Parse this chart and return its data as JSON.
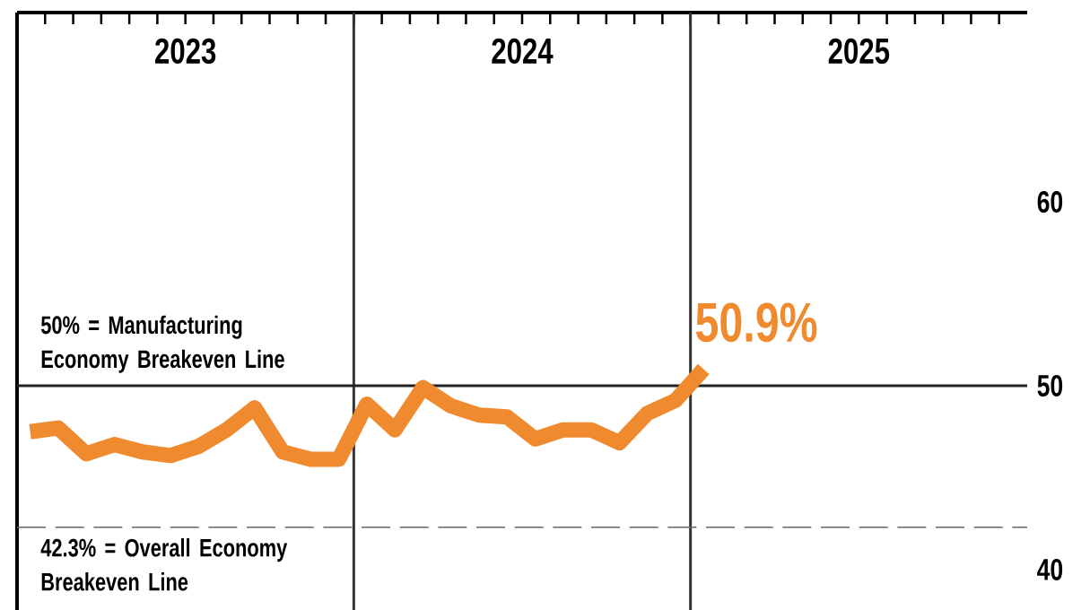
{
  "chart_data": {
    "type": "line",
    "color": "#ef8a2f",
    "marker": "none",
    "line_style": "solid",
    "x": [
      "2023-01-15",
      "2023-02-15",
      "2023-03-15",
      "2023-04-15",
      "2023-05-15",
      "2023-06-15",
      "2023-07-15",
      "2023-08-15",
      "2023-09-15",
      "2023-10-15",
      "2023-11-15",
      "2023-12-15",
      "2024-01-15",
      "2024-02-15",
      "2024-03-15",
      "2024-04-15",
      "2024-05-15",
      "2024-06-15",
      "2024-07-15",
      "2024-08-15",
      "2024-09-15",
      "2024-10-15",
      "2024-11-15",
      "2024-12-15",
      "2025-01-15"
    ],
    "values": [
      47.5,
      47.7,
      46.3,
      46.8,
      46.4,
      46.2,
      46.7,
      47.6,
      48.8,
      46.4,
      46.0,
      46.0,
      49.0,
      47.6,
      49.9,
      48.9,
      48.4,
      48.3,
      47.1,
      47.6,
      47.6,
      46.9,
      48.5,
      49.2,
      50.9
    ],
    "xlim": [
      "2023-01-01",
      "2026-01-01"
    ],
    "xticks": [
      {
        "value": "2023-01",
        "label": null
      },
      {
        "value": "2023-02",
        "label": null
      },
      {
        "value": "2023-03",
        "label": null
      },
      {
        "value": "2023-04",
        "label": null
      },
      {
        "value": "2023-05",
        "label": null
      },
      {
        "value": "2023-06",
        "label": null
      },
      {
        "value": "2023-07",
        "label": null
      },
      {
        "value": "2023-08",
        "label": null
      },
      {
        "value": "2023-09",
        "label": null
      },
      {
        "value": "2023-10",
        "label": null
      },
      {
        "value": "2023-11",
        "label": null
      },
      {
        "value": "2023-12",
        "label": null
      },
      {
        "value": "2024-01",
        "label": null
      },
      {
        "value": "2024-02",
        "label": null
      },
      {
        "value": "2024-03",
        "label": null
      },
      {
        "value": "2024-04",
        "label": null
      },
      {
        "value": "2024-05",
        "label": null
      },
      {
        "value": "2024-06",
        "label": null
      },
      {
        "value": "2024-07",
        "label": null
      },
      {
        "value": "2024-08",
        "label": null
      },
      {
        "value": "2024-09",
        "label": null
      },
      {
        "value": "2024-10",
        "label": null
      },
      {
        "value": "2024-11",
        "label": null
      },
      {
        "value": "2024-12",
        "label": null
      },
      {
        "value": "2025-01",
        "label": null
      },
      {
        "value": "2025-02",
        "label": null
      },
      {
        "value": "2025-03",
        "label": null
      },
      {
        "value": "2025-04",
        "label": null
      },
      {
        "value": "2025-05",
        "label": null
      },
      {
        "value": "2025-06",
        "label": null
      },
      {
        "value": "2025-07",
        "label": null
      },
      {
        "value": "2025-08",
        "label": null
      },
      {
        "value": "2025-09",
        "label": null
      },
      {
        "value": "2025-10",
        "label": null
      },
      {
        "value": "2025-11",
        "label": null
      },
      {
        "value": "2025-12",
        "label": null
      },
      {
        "value": "2023-07-01",
        "label": "2023"
      },
      {
        "value": "2024-07-01",
        "label": "2024"
      },
      {
        "value": "2025-07-01",
        "label": "2025"
      }
    ],
    "ylim": [
      37.8,
      70.3
    ],
    "yticks": [
      40,
      50,
      60
    ],
    "ref_lines": [
      {
        "axis": "x",
        "value": "2024-01-01",
        "color": "#333333",
        "line_style": "solid"
      },
      {
        "axis": "x",
        "value": "2025-01-01",
        "color": "#333333",
        "line_style": "solid"
      },
      {
        "axis": "y",
        "value": 50,
        "label": "50% = Manufacturing Economy Breakeven Line",
        "color": "#222222",
        "line_style": "solid"
      },
      {
        "axis": "y",
        "value": 42.3,
        "label": "42.3% = Overall Economy Breakeven Line",
        "color": "#666666",
        "line_style": "dashed"
      }
    ],
    "annotations": [
      {
        "text": "50.9%",
        "x": "2025-01-15",
        "y": 50.9
      }
    ]
  }
}
